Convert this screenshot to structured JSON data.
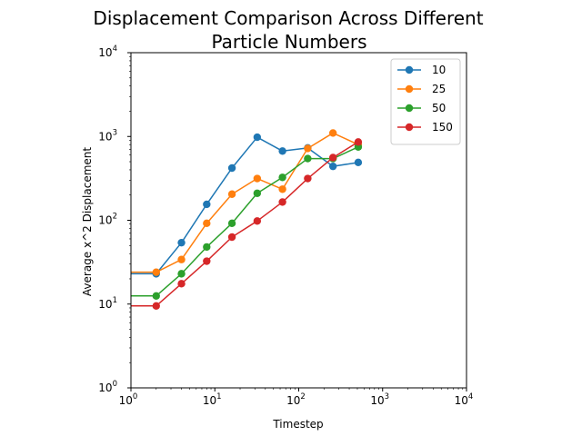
{
  "chart_data": {
    "type": "line",
    "title_lines": [
      "Displacement Comparison Across Different",
      "Particle Numbers"
    ],
    "xlabel": "Timestep",
    "ylabel": "Average x^2 Displacement",
    "xscale": "log",
    "yscale": "log",
    "xlim": [
      1,
      10000
    ],
    "ylim": [
      1,
      10000
    ],
    "x_ticks": [
      {
        "value": 1,
        "base": "10",
        "exp": "0"
      },
      {
        "value": 10,
        "base": "10",
        "exp": "1"
      },
      {
        "value": 100,
        "base": "10",
        "exp": "2"
      },
      {
        "value": 1000,
        "base": "10",
        "exp": "3"
      },
      {
        "value": 10000,
        "base": "10",
        "exp": "4"
      }
    ],
    "y_ticks": [
      {
        "value": 1,
        "base": "10",
        "exp": "0"
      },
      {
        "value": 10,
        "base": "10",
        "exp": "1"
      },
      {
        "value": 100,
        "base": "10",
        "exp": "2"
      },
      {
        "value": 1000,
        "base": "10",
        "exp": "3"
      },
      {
        "value": 10000,
        "base": "10",
        "exp": "4"
      }
    ],
    "grid": false,
    "legend_position": "top-right",
    "x": [
      1,
      2,
      4,
      8,
      16,
      32,
      64,
      128,
      256,
      512
    ],
    "series": [
      {
        "name": "10",
        "color": "#1f77b4",
        "values": [
          23,
          23,
          54,
          155,
          420,
          980,
          670,
          730,
          440,
          490
        ],
        "marker_from": 1
      },
      {
        "name": "25",
        "color": "#ff7f0e",
        "values": [
          24,
          24,
          34,
          92,
          205,
          315,
          235,
          720,
          1100,
          800
        ],
        "marker_from": 1
      },
      {
        "name": "50",
        "color": "#2ca02c",
        "values": [
          12.5,
          12.5,
          23,
          48,
          92,
          210,
          325,
          545,
          545,
          750
        ],
        "marker_from": 1
      },
      {
        "name": "150",
        "color": "#d62728",
        "values": [
          9.5,
          9.5,
          17.5,
          32.5,
          63,
          98,
          165,
          315,
          560,
          860
        ],
        "marker_from": 1
      }
    ]
  }
}
